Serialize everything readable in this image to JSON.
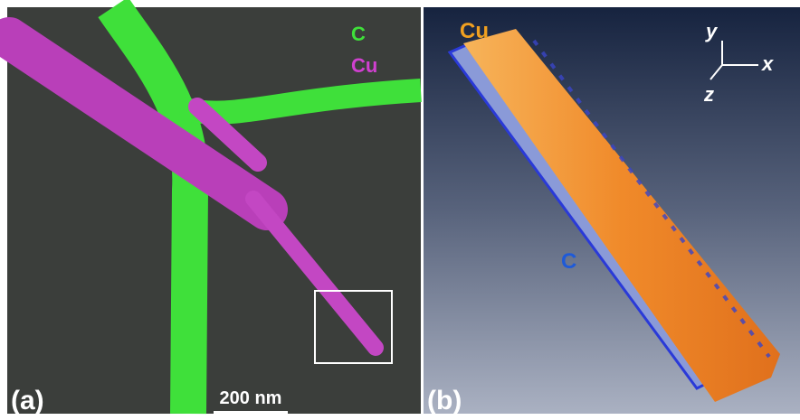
{
  "panels": [
    {
      "label": "(a)",
      "legend": [
        "C",
        "Cu"
      ],
      "scale_bar": "200 nm"
    },
    {
      "label": "(b)",
      "annotations": [
        "Cu",
        "C"
      ],
      "axes": [
        "y",
        "x",
        "z"
      ]
    }
  ]
}
